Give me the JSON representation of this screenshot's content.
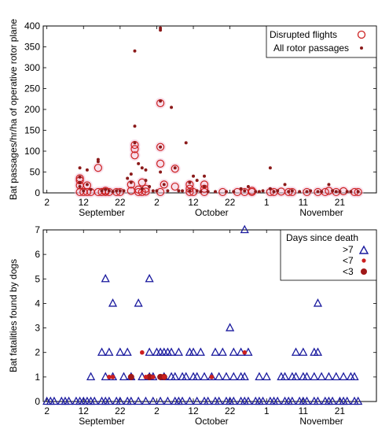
{
  "chart_data": [
    {
      "type": "scatter",
      "ylabel": "Bat passages/hr/ha of operative rotor plane",
      "ylim": [
        0,
        400
      ],
      "yticks": [
        0,
        50,
        100,
        150,
        200,
        250,
        300,
        350,
        400
      ],
      "xticks": [
        "2",
        "12",
        "22",
        "2",
        "12",
        "22",
        "1",
        "11",
        "21"
      ],
      "month_labels": [
        "September",
        "October",
        "November"
      ],
      "legend": {
        "position": "top-right",
        "entries": [
          {
            "label": "Disrupted flights",
            "marker": "open-circle",
            "color": "#cc1f1f"
          },
          {
            "label": "All rotor passages",
            "marker": "dot",
            "color": "#8b1a1a"
          }
        ]
      },
      "series": [
        {
          "name": "Disrupted flights",
          "points": [
            [
              10,
              35
            ],
            [
              10,
              30
            ],
            [
              10,
              18
            ],
            [
              10,
              2
            ],
            [
              11,
              2
            ],
            [
              12,
              18
            ],
            [
              12,
              2
            ],
            [
              13,
              2
            ],
            [
              15,
              60
            ],
            [
              15,
              2
            ],
            [
              16,
              2
            ],
            [
              17,
              5
            ],
            [
              17,
              2
            ],
            [
              18,
              2
            ],
            [
              20,
              2
            ],
            [
              21,
              2
            ],
            [
              24,
              20
            ],
            [
              24,
              5
            ],
            [
              25,
              115
            ],
            [
              25,
              105
            ],
            [
              25,
              90
            ],
            [
              26,
              2
            ],
            [
              26,
              8
            ],
            [
              27,
              25
            ],
            [
              27,
              2
            ],
            [
              28,
              10
            ],
            [
              28,
              3
            ],
            [
              32,
              215
            ],
            [
              32,
              110
            ],
            [
              32,
              70
            ],
            [
              32,
              2
            ],
            [
              33,
              20
            ],
            [
              36,
              58
            ],
            [
              36,
              15
            ],
            [
              40,
              20
            ],
            [
              40,
              10
            ],
            [
              40,
              2
            ],
            [
              41,
              2
            ],
            [
              44,
              20
            ],
            [
              44,
              10
            ],
            [
              44,
              2
            ],
            [
              49,
              2
            ],
            [
              53,
              2
            ],
            [
              55,
              2
            ],
            [
              57,
              2
            ],
            [
              57,
              5
            ],
            [
              62,
              2
            ],
            [
              63,
              2
            ],
            [
              65,
              3
            ],
            [
              67,
              2
            ],
            [
              68,
              2
            ],
            [
              72,
              2
            ],
            [
              75,
              2
            ],
            [
              77,
              2
            ],
            [
              78,
              5
            ],
            [
              80,
              2
            ],
            [
              82,
              4
            ],
            [
              85,
              2
            ],
            [
              86,
              2
            ]
          ]
        },
        {
          "name": "All rotor passages",
          "points": [
            [
              10,
              60
            ],
            [
              10,
              38
            ],
            [
              10,
              25
            ],
            [
              10,
              15
            ],
            [
              11,
              5
            ],
            [
              12,
              55
            ],
            [
              12,
              20
            ],
            [
              13,
              8
            ],
            [
              15,
              80
            ],
            [
              15,
              75
            ],
            [
              16,
              5
            ],
            [
              17,
              8
            ],
            [
              18,
              5
            ],
            [
              19,
              3
            ],
            [
              20,
              5
            ],
            [
              21,
              5
            ],
            [
              22,
              5
            ],
            [
              23,
              35
            ],
            [
              24,
              45
            ],
            [
              24,
              25
            ],
            [
              25,
              340
            ],
            [
              25,
              160
            ],
            [
              25,
              120
            ],
            [
              26,
              70
            ],
            [
              27,
              60
            ],
            [
              27,
              10
            ],
            [
              28,
              55
            ],
            [
              28,
              30
            ],
            [
              29,
              15
            ],
            [
              30,
              5
            ],
            [
              31,
              5
            ],
            [
              32,
              395
            ],
            [
              32,
              390
            ],
            [
              32,
              220
            ],
            [
              32,
              110
            ],
            [
              32,
              50
            ],
            [
              33,
              20
            ],
            [
              34,
              5
            ],
            [
              35,
              205
            ],
            [
              36,
              60
            ],
            [
              37,
              5
            ],
            [
              38,
              5
            ],
            [
              39,
              120
            ],
            [
              40,
              25
            ],
            [
              40,
              5
            ],
            [
              41,
              40
            ],
            [
              42,
              30
            ],
            [
              42,
              5
            ],
            [
              43,
              3
            ],
            [
              44,
              40
            ],
            [
              44,
              15
            ],
            [
              45,
              3
            ],
            [
              47,
              3
            ],
            [
              50,
              3
            ],
            [
              52,
              3
            ],
            [
              54,
              10
            ],
            [
              55,
              5
            ],
            [
              56,
              15
            ],
            [
              58,
              3
            ],
            [
              59,
              3
            ],
            [
              60,
              5
            ],
            [
              62,
              60
            ],
            [
              62,
              10
            ],
            [
              63,
              3
            ],
            [
              64,
              5
            ],
            [
              66,
              20
            ],
            [
              67,
              3
            ],
            [
              68,
              5
            ],
            [
              70,
              3
            ],
            [
              72,
              3
            ],
            [
              73,
              5
            ],
            [
              75,
              3
            ],
            [
              76,
              3
            ],
            [
              78,
              20
            ],
            [
              79,
              5
            ],
            [
              80,
              3
            ],
            [
              81,
              3
            ],
            [
              83,
              3
            ],
            [
              84,
              3
            ],
            [
              86,
              3
            ]
          ]
        }
      ]
    },
    {
      "type": "scatter",
      "ylabel": "Bat fatalities found by dogs",
      "ylim": [
        0,
        7
      ],
      "yticks": [
        0,
        1,
        2,
        3,
        4,
        5,
        6,
        7
      ],
      "xticks": [
        "2",
        "12",
        "22",
        "2",
        "12",
        "22",
        "1",
        "11",
        "21"
      ],
      "month_labels": [
        "September",
        "October",
        "November"
      ],
      "legend": {
        "position": "top-right",
        "title": "Days since death",
        "entries": [
          {
            "label": ">7",
            "marker": "open-triangle",
            "color": "#1a1a9e"
          },
          {
            "label": "<7",
            "marker": "small-dot",
            "color": "#cc1f1f"
          },
          {
            "label": "<3",
            "marker": "large-dot",
            "color": "#a01818"
          }
        ]
      },
      "series": [
        {
          "name": ">7",
          "points": [
            [
              1,
              0
            ],
            [
              2,
              0
            ],
            [
              3,
              0
            ],
            [
              5,
              0
            ],
            [
              6,
              0
            ],
            [
              7,
              0
            ],
            [
              9,
              0
            ],
            [
              10,
              0
            ],
            [
              11,
              0
            ],
            [
              12,
              0
            ],
            [
              13,
              0
            ],
            [
              14,
              0
            ],
            [
              16,
              0
            ],
            [
              17,
              0
            ],
            [
              18,
              0
            ],
            [
              20,
              0
            ],
            [
              21,
              0
            ],
            [
              23,
              0
            ],
            [
              24,
              0
            ],
            [
              26,
              0
            ],
            [
              28,
              0
            ],
            [
              30,
              0
            ],
            [
              32,
              0
            ],
            [
              34,
              0
            ],
            [
              36,
              0
            ],
            [
              37,
              0
            ],
            [
              38,
              0
            ],
            [
              40,
              0
            ],
            [
              42,
              0
            ],
            [
              44,
              0
            ],
            [
              45,
              0
            ],
            [
              47,
              0
            ],
            [
              48,
              0
            ],
            [
              50,
              0
            ],
            [
              51,
              0
            ],
            [
              52,
              0
            ],
            [
              54,
              0
            ],
            [
              55,
              0
            ],
            [
              56,
              0
            ],
            [
              58,
              0
            ],
            [
              59,
              0
            ],
            [
              60,
              0
            ],
            [
              62,
              0
            ],
            [
              63,
              0
            ],
            [
              64,
              0
            ],
            [
              66,
              0
            ],
            [
              67,
              0
            ],
            [
              68,
              0
            ],
            [
              70,
              0
            ],
            [
              71,
              0
            ],
            [
              72,
              0
            ],
            [
              74,
              0
            ],
            [
              75,
              0
            ],
            [
              77,
              0
            ],
            [
              78,
              0
            ],
            [
              79,
              0
            ],
            [
              81,
              0
            ],
            [
              82,
              0
            ],
            [
              83,
              0
            ],
            [
              85,
              0
            ],
            [
              86,
              0
            ],
            [
              13,
              1
            ],
            [
              17,
              1
            ],
            [
              19,
              1
            ],
            [
              22,
              1
            ],
            [
              24,
              1
            ],
            [
              27,
              1
            ],
            [
              29,
              1
            ],
            [
              30,
              1
            ],
            [
              33,
              1
            ],
            [
              35,
              1
            ],
            [
              36,
              1
            ],
            [
              38,
              1
            ],
            [
              39,
              1
            ],
            [
              41,
              1
            ],
            [
              42,
              1
            ],
            [
              44,
              1
            ],
            [
              46,
              1
            ],
            [
              48,
              1
            ],
            [
              50,
              1
            ],
            [
              52,
              1
            ],
            [
              54,
              1
            ],
            [
              55,
              1
            ],
            [
              59,
              1
            ],
            [
              61,
              1
            ],
            [
              65,
              1
            ],
            [
              66,
              1
            ],
            [
              68,
              1
            ],
            [
              69,
              1
            ],
            [
              71,
              1
            ],
            [
              72,
              1
            ],
            [
              74,
              1
            ],
            [
              76,
              1
            ],
            [
              78,
              1
            ],
            [
              80,
              1
            ],
            [
              82,
              1
            ],
            [
              84,
              1
            ],
            [
              85,
              1
            ],
            [
              16,
              2
            ],
            [
              18,
              2
            ],
            [
              21,
              2
            ],
            [
              23,
              2
            ],
            [
              29,
              2
            ],
            [
              31,
              2
            ],
            [
              32,
              2
            ],
            [
              33,
              2
            ],
            [
              34,
              2
            ],
            [
              35,
              2
            ],
            [
              37,
              2
            ],
            [
              40,
              2
            ],
            [
              41,
              2
            ],
            [
              43,
              2
            ],
            [
              47,
              2
            ],
            [
              49,
              2
            ],
            [
              52,
              2
            ],
            [
              54,
              2
            ],
            [
              56,
              2
            ],
            [
              69,
              2
            ],
            [
              71,
              2
            ],
            [
              74,
              2
            ],
            [
              75,
              2
            ],
            [
              51,
              3
            ],
            [
              19,
              4
            ],
            [
              26,
              4
            ],
            [
              75,
              4
            ],
            [
              17,
              5
            ],
            [
              29,
              5
            ],
            [
              55,
              7
            ]
          ]
        },
        {
          "name": "<7",
          "points": [
            [
              18,
              1
            ],
            [
              19,
              1
            ],
            [
              27,
              2
            ],
            [
              28,
              1
            ],
            [
              30,
              1
            ],
            [
              33,
              1
            ],
            [
              46,
              1
            ],
            [
              55,
              2
            ]
          ]
        },
        {
          "name": "<3",
          "points": [
            [
              24,
              1
            ],
            [
              29,
              1
            ],
            [
              32,
              1
            ],
            [
              33,
              1
            ]
          ]
        }
      ]
    }
  ]
}
